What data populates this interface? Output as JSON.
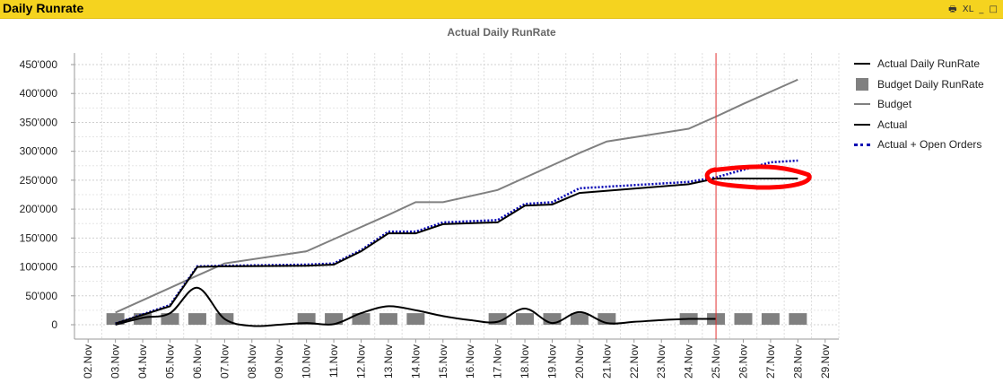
{
  "window": {
    "title": "Daily Runrate",
    "tools": {
      "print": "🖶",
      "excel": "XL",
      "minimize": "_",
      "maximize": "□"
    }
  },
  "colors": {
    "titlebar": "#f5d31f",
    "actual": "#000000",
    "budget": "#808080",
    "open_orders": "#0000b3",
    "marker_line": "#e03030",
    "highlight": "#ff0000"
  },
  "chart_data": {
    "type": "line",
    "title": "Actual Daily RunRate",
    "categories": [
      "02.Nov",
      "03.Nov",
      "04.Nov",
      "05.Nov",
      "06.Nov",
      "07.Nov",
      "08.Nov",
      "09.Nov",
      "10.Nov",
      "11.Nov",
      "12.Nov",
      "13.Nov",
      "14.Nov",
      "15.Nov",
      "16.Nov",
      "17.Nov",
      "18.Nov",
      "19.Nov",
      "20.Nov",
      "21.Nov",
      "22.Nov",
      "23.Nov",
      "24.Nov",
      "25.Nov",
      "26.Nov",
      "27.Nov",
      "28.Nov",
      "29.Nov"
    ],
    "y_ticks": [
      {
        "value": 0,
        "label": "0"
      },
      {
        "value": 50000,
        "label": "50'000"
      },
      {
        "value": 100000,
        "label": "100'000"
      },
      {
        "value": 150000,
        "label": "150'000"
      },
      {
        "value": 200000,
        "label": "200'000"
      },
      {
        "value": 250000,
        "label": "250'000"
      },
      {
        "value": 300000,
        "label": "300'000"
      },
      {
        "value": 350000,
        "label": "350'000"
      },
      {
        "value": 400000,
        "label": "400'000"
      },
      {
        "value": 450000,
        "label": "450'000"
      }
    ],
    "ylim": [
      0,
      470000
    ],
    "grid": true,
    "legend_position": "right",
    "reference_line": "25.Nov",
    "series": [
      {
        "name": "Actual Daily RunRate",
        "kind": "smooth-line",
        "color": "#000000",
        "points": [
          [
            "03.Nov",
            0
          ],
          [
            "04.Nov",
            12000
          ],
          [
            "05.Nov",
            20000
          ],
          [
            "06.Nov",
            64000
          ],
          [
            "07.Nov",
            10000
          ],
          [
            "08.Nov",
            -2000
          ],
          [
            "09.Nov",
            0
          ],
          [
            "10.Nov",
            3000
          ],
          [
            "11.Nov",
            1000
          ],
          [
            "12.Nov",
            20000
          ],
          [
            "13.Nov",
            32000
          ],
          [
            "14.Nov",
            25000
          ],
          [
            "15.Nov",
            15000
          ],
          [
            "16.Nov",
            8000
          ],
          [
            "17.Nov",
            5000
          ],
          [
            "18.Nov",
            28000
          ],
          [
            "19.Nov",
            3000
          ],
          [
            "20.Nov",
            22000
          ],
          [
            "21.Nov",
            3000
          ],
          [
            "22.Nov",
            5000
          ],
          [
            "23.Nov",
            8000
          ],
          [
            "24.Nov",
            10000
          ],
          [
            "25.Nov",
            10000
          ]
        ]
      },
      {
        "name": "Budget Daily RunRate",
        "kind": "box",
        "color": "#808080",
        "box_value": 20000,
        "points": [
          [
            "03.Nov",
            20000
          ],
          [
            "04.Nov",
            20000
          ],
          [
            "05.Nov",
            20000
          ],
          [
            "06.Nov",
            20000
          ],
          [
            "07.Nov",
            20000
          ],
          [
            "10.Nov",
            20000
          ],
          [
            "11.Nov",
            20000
          ],
          [
            "12.Nov",
            20000
          ],
          [
            "13.Nov",
            20000
          ],
          [
            "14.Nov",
            20000
          ],
          [
            "17.Nov",
            20000
          ],
          [
            "18.Nov",
            20000
          ],
          [
            "19.Nov",
            20000
          ],
          [
            "20.Nov",
            20000
          ],
          [
            "21.Nov",
            20000
          ],
          [
            "24.Nov",
            20000
          ],
          [
            "25.Nov",
            20000
          ],
          [
            "26.Nov",
            20000
          ],
          [
            "27.Nov",
            20000
          ],
          [
            "28.Nov",
            20000
          ]
        ]
      },
      {
        "name": "Budget",
        "kind": "line",
        "color": "#808080",
        "points": [
          [
            "03.Nov",
            21000
          ],
          [
            "06.Nov",
            85000
          ],
          [
            "07.Nov",
            106000
          ],
          [
            "10.Nov",
            127000
          ],
          [
            "13.Nov",
            190000
          ],
          [
            "14.Nov",
            212000
          ],
          [
            "15.Nov",
            212000
          ],
          [
            "17.Nov",
            233000
          ],
          [
            "20.Nov",
            297000
          ],
          [
            "21.Nov",
            317000
          ],
          [
            "24.Nov",
            339000
          ],
          [
            "25.Nov",
            360000
          ],
          [
            "26.Nov",
            382000
          ],
          [
            "28.Nov",
            424000
          ]
        ]
      },
      {
        "name": "Actual",
        "kind": "line",
        "color": "#000000",
        "points": [
          [
            "03.Nov",
            2000
          ],
          [
            "05.Nov",
            32000
          ],
          [
            "06.Nov",
            100000
          ],
          [
            "07.Nov",
            101000
          ],
          [
            "10.Nov",
            102000
          ],
          [
            "11.Nov",
            104000
          ],
          [
            "12.Nov",
            127000
          ],
          [
            "13.Nov",
            158000
          ],
          [
            "14.Nov",
            158000
          ],
          [
            "15.Nov",
            174000
          ],
          [
            "17.Nov",
            177000
          ],
          [
            "18.Nov",
            206000
          ],
          [
            "19.Nov",
            208000
          ],
          [
            "20.Nov",
            228000
          ],
          [
            "24.Nov",
            243000
          ],
          [
            "25.Nov",
            253000
          ],
          [
            "28.Nov",
            253000
          ]
        ]
      },
      {
        "name": "Actual + Open Orders",
        "kind": "dotted-line",
        "color": "#0000b3",
        "points": [
          [
            "03.Nov",
            2000
          ],
          [
            "05.Nov",
            34000
          ],
          [
            "06.Nov",
            101000
          ],
          [
            "07.Nov",
            102000
          ],
          [
            "10.Nov",
            104000
          ],
          [
            "11.Nov",
            106000
          ],
          [
            "12.Nov",
            129000
          ],
          [
            "13.Nov",
            161000
          ],
          [
            "14.Nov",
            161000
          ],
          [
            "15.Nov",
            177000
          ],
          [
            "17.Nov",
            181000
          ],
          [
            "18.Nov",
            209000
          ],
          [
            "19.Nov",
            212000
          ],
          [
            "20.Nov",
            236000
          ],
          [
            "24.Nov",
            247000
          ],
          [
            "25.Nov",
            255000
          ],
          [
            "26.Nov",
            268000
          ],
          [
            "27.Nov",
            281000
          ],
          [
            "28.Nov",
            284000
          ]
        ]
      }
    ]
  }
}
